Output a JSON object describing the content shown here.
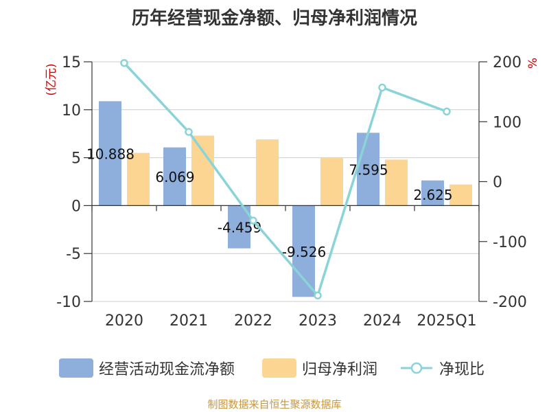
{
  "title": "历年经营现金净额、归母净利润情况",
  "source": "制图数据来自恒生聚源数据库",
  "colors": {
    "operating_cash": "#8eaedc",
    "net_profit": "#fdd593",
    "ratio": "#8ad3d6",
    "unit_text": "#cc0000",
    "axis_text": "#333333",
    "grid": "#cccccc"
  },
  "legend": [
    "经营活动现金流净额",
    "归母净利润",
    "净现比"
  ],
  "chart_data": {
    "type": "bar",
    "categories": [
      "2020",
      "2021",
      "2022",
      "2023",
      "2024",
      "2025Q1"
    ],
    "left_axis": {
      "unit": "(亿元)",
      "range": [
        -10,
        15
      ],
      "ticks": [
        "15",
        "10",
        "5",
        "0",
        "-5",
        "-10"
      ]
    },
    "right_axis": {
      "unit": "%",
      "range": [
        -200,
        200
      ],
      "ticks": [
        "200",
        "100",
        "0",
        "-100",
        "-200"
      ]
    },
    "series": [
      {
        "name": "经营活动现金流净额",
        "type": "bar",
        "axis": "left",
        "values": [
          10.888,
          6.069,
          -4.459,
          -9.526,
          7.595,
          2.625
        ],
        "labels": [
          "10.888",
          "6.069",
          "-4.459",
          "-9.526",
          "7.595",
          "2.625"
        ]
      },
      {
        "name": "归母净利润",
        "type": "bar",
        "axis": "left",
        "values": [
          5.5,
          7.3,
          6.9,
          5.0,
          4.8,
          2.2
        ]
      },
      {
        "name": "净现比",
        "type": "line",
        "axis": "right",
        "values": [
          198,
          83,
          -65,
          -190,
          157,
          117
        ]
      }
    ]
  }
}
